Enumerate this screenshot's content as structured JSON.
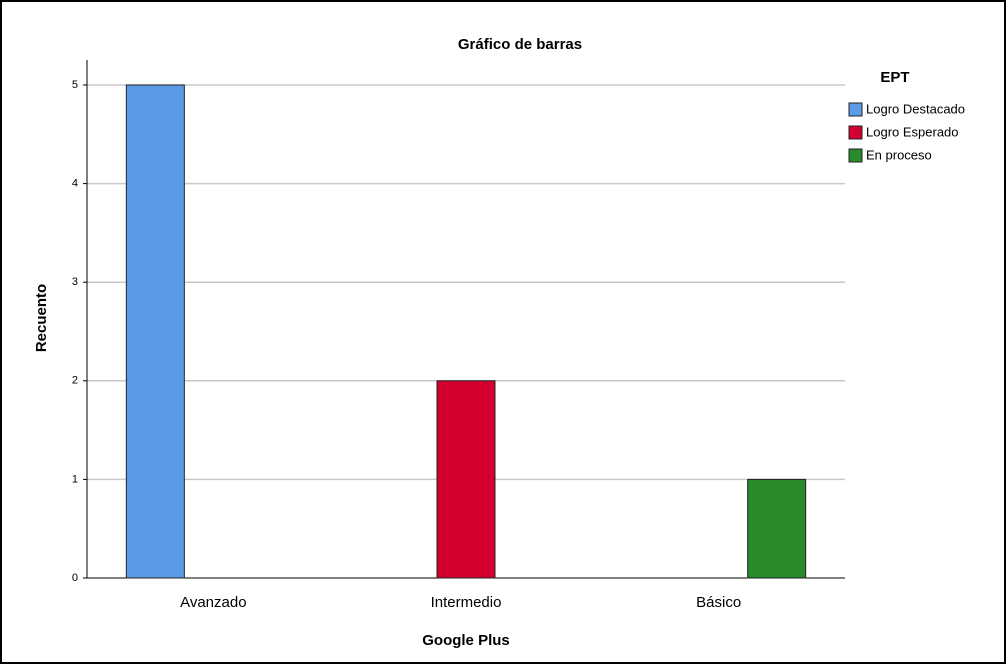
{
  "chart_data": {
    "type": "bar",
    "title": "Gráfico de barras",
    "x_label": "Google Plus",
    "y_label": "Recuento",
    "legend_title": "EPT",
    "legend_position": "right",
    "categories": [
      "Avanzado",
      "Intermedio",
      "Básico"
    ],
    "series": [
      {
        "name": "Logro Destacado",
        "color": "#5b9ae6",
        "values": [
          5,
          null,
          null
        ]
      },
      {
        "name": "Logro Esperado",
        "color": "#d3002f",
        "values": [
          null,
          2,
          null
        ]
      },
      {
        "name": "En proceso",
        "color": "#288a2a",
        "values": [
          null,
          null,
          1
        ]
      }
    ],
    "ylim": [
      0,
      5
    ],
    "yticks": [
      0,
      1,
      2,
      3,
      4,
      5
    ],
    "grid": true
  }
}
